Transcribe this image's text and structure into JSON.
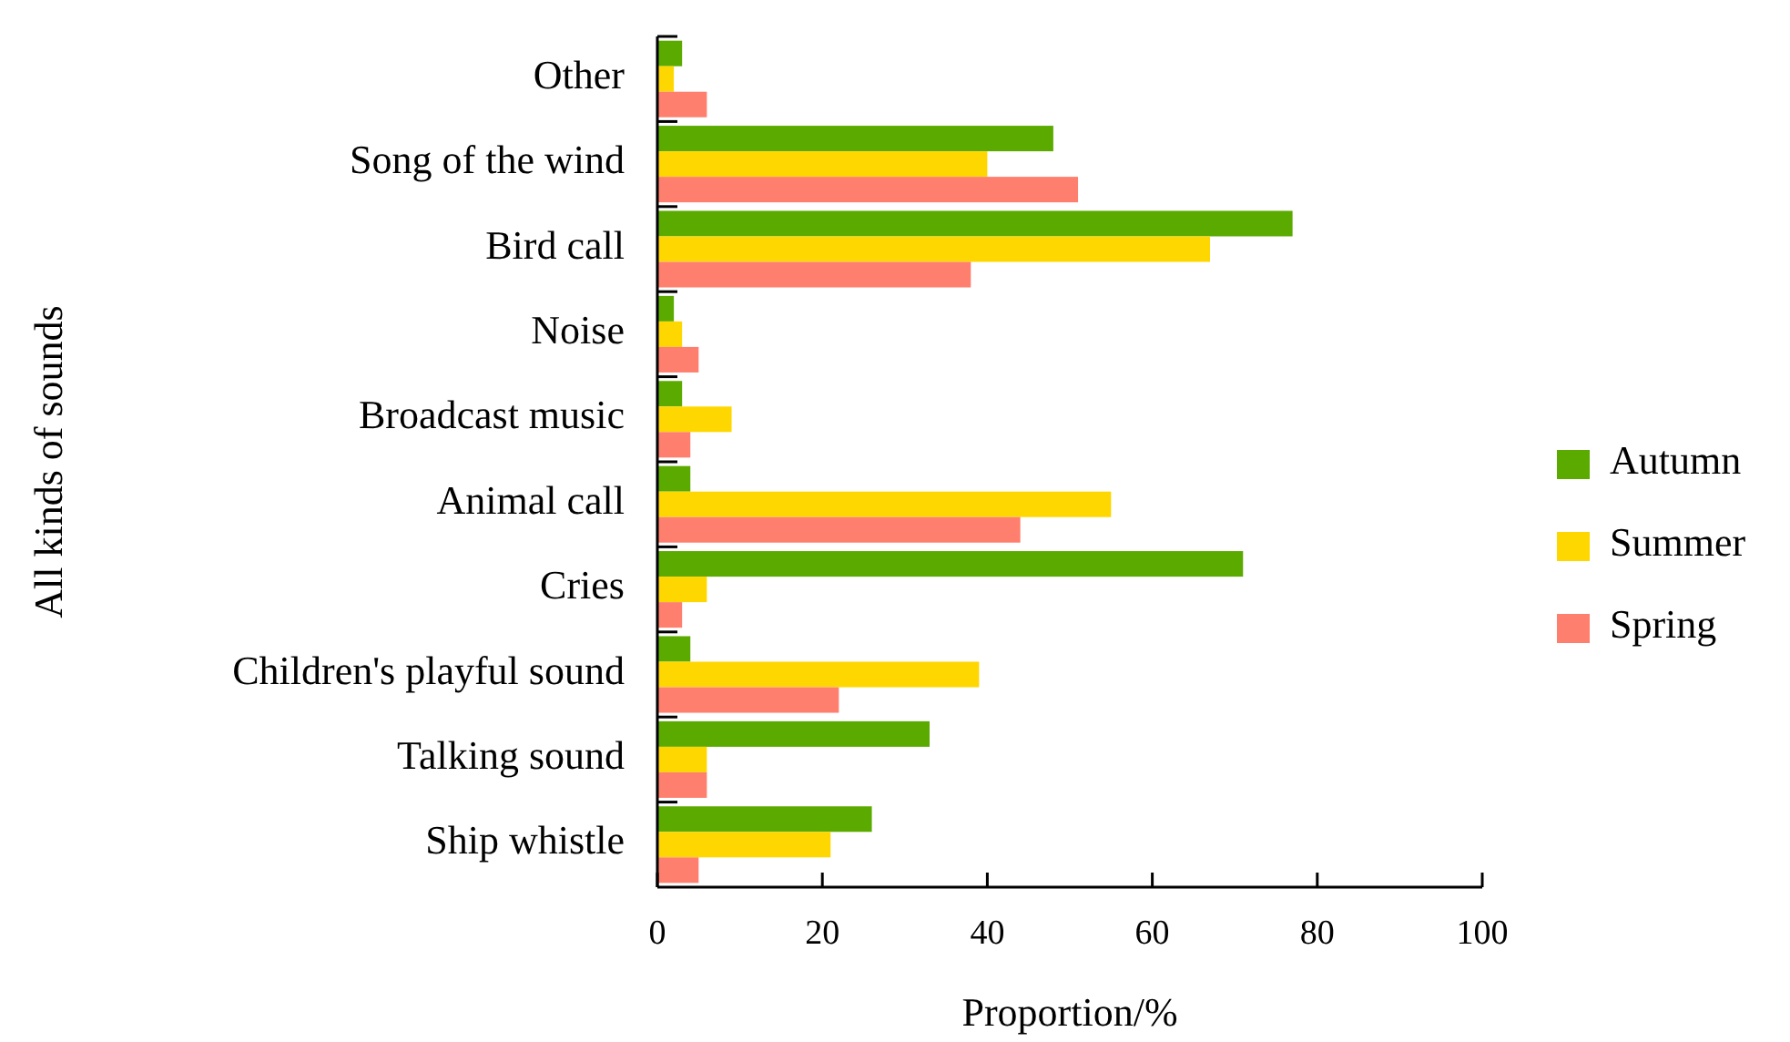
{
  "chart_data": {
    "type": "bar",
    "orientation": "horizontal",
    "xlabel": "Proportion/%",
    "ylabel": "All kinds of sounds",
    "categories": [
      "Other",
      "Song of the wind",
      "Bird call",
      "Noise",
      "Broadcast music",
      "Animal call",
      "Cries",
      "Children's playful sound",
      "Talking sound",
      "Ship whistle"
    ],
    "series": [
      {
        "name": "Autumn",
        "color": "#5aaa00",
        "values": [
          3,
          48,
          77,
          2,
          3,
          4,
          71,
          4,
          33,
          26
        ]
      },
      {
        "name": "Summer",
        "color": "#ffd700",
        "values": [
          2,
          40,
          67,
          3,
          9,
          55,
          6,
          39,
          6,
          21
        ]
      },
      {
        "name": "Spring",
        "color": "#ff7f6e",
        "values": [
          6,
          51,
          38,
          5,
          4,
          44,
          3,
          22,
          6,
          5
        ]
      }
    ],
    "xlim": [
      0,
      100
    ],
    "xticks": [
      0,
      20,
      40,
      60,
      80,
      100
    ],
    "grid": false,
    "legend": "right"
  }
}
